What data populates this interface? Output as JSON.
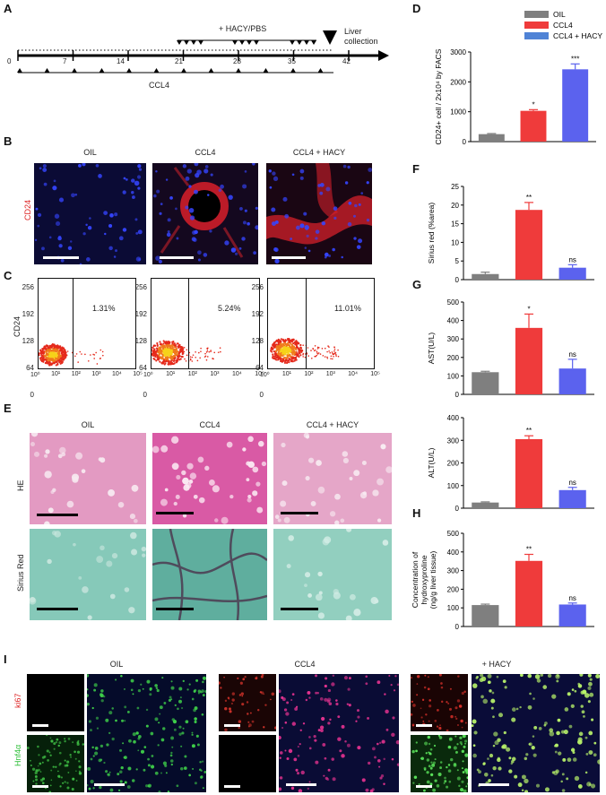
{
  "panels": {
    "A": "A",
    "B": "B",
    "C": "C",
    "D": "D",
    "E": "E",
    "F": "F",
    "G": "G",
    "H": "H",
    "I": "I"
  },
  "timeline": {
    "ticks": [
      "0",
      "7",
      "14",
      "21",
      "28",
      "35",
      "42"
    ],
    "treatment_label": "+ HACY/PBS",
    "injection_label": "CCL4",
    "collection_label_1": "Liver",
    "collection_label_2": "collection"
  },
  "groups": {
    "oil": "OIL",
    "ccl4": "CCL4",
    "ccl4_hacy": "CCL4 + HACY",
    "hacy_short": "+ HACY"
  },
  "panel_b": {
    "row_label": "CD24"
  },
  "panel_c": {
    "ylabel": "CD24",
    "yticks": [
      "256",
      "192",
      "128",
      "64",
      "0"
    ],
    "xticks": [
      "10⁰",
      "10¹",
      "10²",
      "10³",
      "10⁴",
      "10⁵"
    ],
    "percentages": [
      "1.31%",
      "5.24%",
      "11.01%"
    ]
  },
  "panel_e": {
    "row_labels": [
      "HE",
      "Sirius  Red"
    ]
  },
  "panel_i": {
    "row_labels": [
      "ki67",
      "Hnf4α"
    ]
  },
  "colors": {
    "oil": "#7f7f7f",
    "ccl4": "#ef3b3b",
    "hacy": "#5b62ee",
    "hacy_legend": "#4f83d6",
    "cd24_stain": "#e3262b",
    "nuclei": "#2b2fd1",
    "he": "#d98ab7",
    "sirius": "#7fc3b6"
  },
  "chart_data": [
    {
      "type": "bar",
      "panel": "D",
      "categories": [
        "OIL",
        "CCL4",
        "CCL4 + HACY"
      ],
      "values": [
        250,
        1030,
        2420
      ],
      "errors": [
        20,
        40,
        180
      ],
      "significance": [
        "",
        "*",
        "***"
      ],
      "ylabel": "CD24+ cell / 2x10⁴  by FACS",
      "ylim": [
        0,
        3000
      ],
      "yticks": [
        0,
        1000,
        2000,
        3000
      ],
      "legend": [
        "OIL",
        "CCL4",
        "CCL4 + HACY"
      ],
      "legend_position": "top"
    },
    {
      "type": "bar",
      "panel": "F",
      "categories": [
        "OIL",
        "CCL4",
        "CCL4 + HACY"
      ],
      "values": [
        1.5,
        18.7,
        3.2
      ],
      "errors": [
        0.5,
        2,
        0.8
      ],
      "significance": [
        "",
        "**",
        "ns"
      ],
      "ylabel": "Sirius red (%area)",
      "ylim": [
        0,
        25
      ],
      "yticks": [
        0,
        5,
        10,
        15,
        20,
        25
      ]
    },
    {
      "type": "bar",
      "panel": "G",
      "categories": [
        "OIL",
        "CCL4",
        "CCL4 + HACY"
      ],
      "values": [
        120,
        360,
        140
      ],
      "errors": [
        5,
        75,
        50
      ],
      "significance": [
        "",
        "*",
        "ns"
      ],
      "ylabel": "AST(U/L)",
      "ylim": [
        0,
        500
      ],
      "yticks": [
        0,
        100,
        200,
        300,
        400,
        500
      ]
    },
    {
      "type": "bar",
      "panel": "G2",
      "categories": [
        "OIL",
        "CCL4",
        "CCL4 + HACY"
      ],
      "values": [
        25,
        305,
        80
      ],
      "errors": [
        3,
        15,
        12
      ],
      "significance": [
        "",
        "**",
        "ns"
      ],
      "ylabel": "ALT(U/L)",
      "ylim": [
        0,
        400
      ],
      "yticks": [
        0,
        100,
        200,
        300,
        400
      ]
    },
    {
      "type": "bar",
      "panel": "H",
      "categories": [
        "OIL",
        "CCL4",
        "CCL4 + HACY"
      ],
      "values": [
        115,
        352,
        118
      ],
      "errors": [
        5,
        35,
        8
      ],
      "significance": [
        "",
        "**",
        "ns"
      ],
      "ylabel_lines": [
        "Concentration of",
        "hydroxyproline",
        "(ng/g  liver tissue)"
      ],
      "ylim": [
        0,
        500
      ],
      "yticks": [
        0,
        100,
        200,
        300,
        400,
        500
      ]
    }
  ]
}
